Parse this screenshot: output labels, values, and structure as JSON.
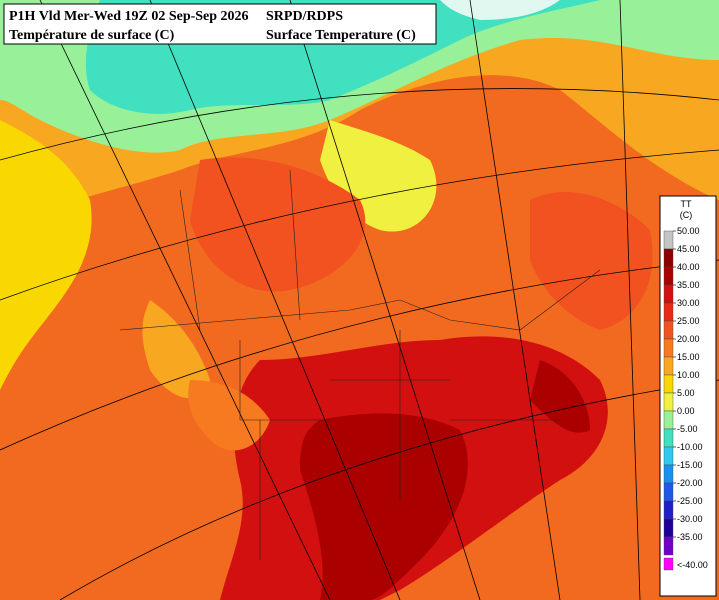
{
  "header": {
    "left_line1": "P1H Vld Mer-Wed 19Z 02 Sep-Sep 2026",
    "right_line1": "SRPD/RDPS",
    "left_line2": "Température de surface (C)",
    "right_line2": "Surface Temperature (C)"
  },
  "legend": {
    "title": "TT",
    "unit": "(C)",
    "items": [
      {
        "label": "50.00",
        "color": "#c4c4c4"
      },
      {
        "label": "45.00",
        "color": "#8c0000"
      },
      {
        "label": "40.00",
        "color": "#aa0000"
      },
      {
        "label": "35.00",
        "color": "#d21010"
      },
      {
        "label": "30.00",
        "color": "#ea2a18"
      },
      {
        "label": "25.00",
        "color": "#f25220"
      },
      {
        "label": "20.00",
        "color": "#f87a20"
      },
      {
        "label": "15.00",
        "color": "#f8a820"
      },
      {
        "label": "10.00",
        "color": "#f8d800"
      },
      {
        "label": "5.00",
        "color": "#f0f040"
      },
      {
        "label": "0.00",
        "color": "#98f098"
      },
      {
        "label": "-5.00",
        "color": "#40e0c0"
      },
      {
        "label": "-10.00",
        "color": "#30c8f0"
      },
      {
        "label": "-15.00",
        "color": "#1890f0"
      },
      {
        "label": "-20.00",
        "color": "#2058e8"
      },
      {
        "label": "-25.00",
        "color": "#2020c8"
      },
      {
        "label": "-30.00",
        "color": "#200098"
      },
      {
        "label": "-35.00",
        "color": "#7000c8"
      },
      {
        "label": "<-40.00",
        "color": "#ff00ff"
      }
    ]
  }
}
